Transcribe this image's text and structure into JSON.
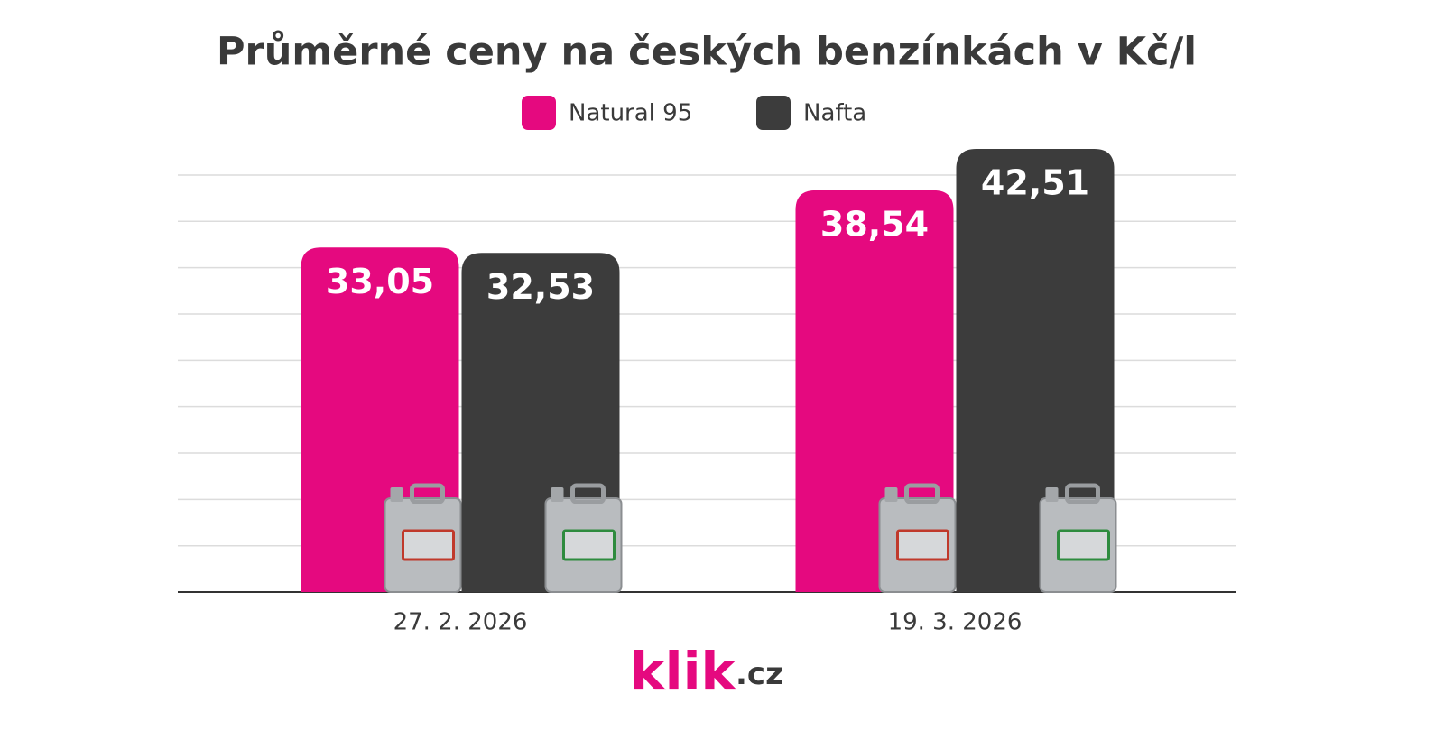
{
  "chart_data": {
    "type": "bar",
    "title": "Průměrné ceny na českých benzínkách v Kč/l",
    "categories": [
      "27. 2. 2026",
      "19. 3. 2026"
    ],
    "series": [
      {
        "name": "Natural 95",
        "color": "#e5097f",
        "values": [
          33.05,
          38.54
        ],
        "value_labels": [
          "33,05",
          "38,54"
        ]
      },
      {
        "name": "Nafta",
        "color": "#3c3c3c",
        "values": [
          32.53,
          42.51
        ],
        "value_labels": [
          "32,53",
          "42,51"
        ]
      }
    ],
    "ylim": [
      0,
      45
    ],
    "yticks": [
      0,
      4.44,
      8.89,
      13.33,
      17.78,
      22.22,
      26.67,
      31.11,
      35.56,
      40
    ],
    "grid": true,
    "legend": "top",
    "logo": [
      "klik",
      ".cz"
    ]
  }
}
